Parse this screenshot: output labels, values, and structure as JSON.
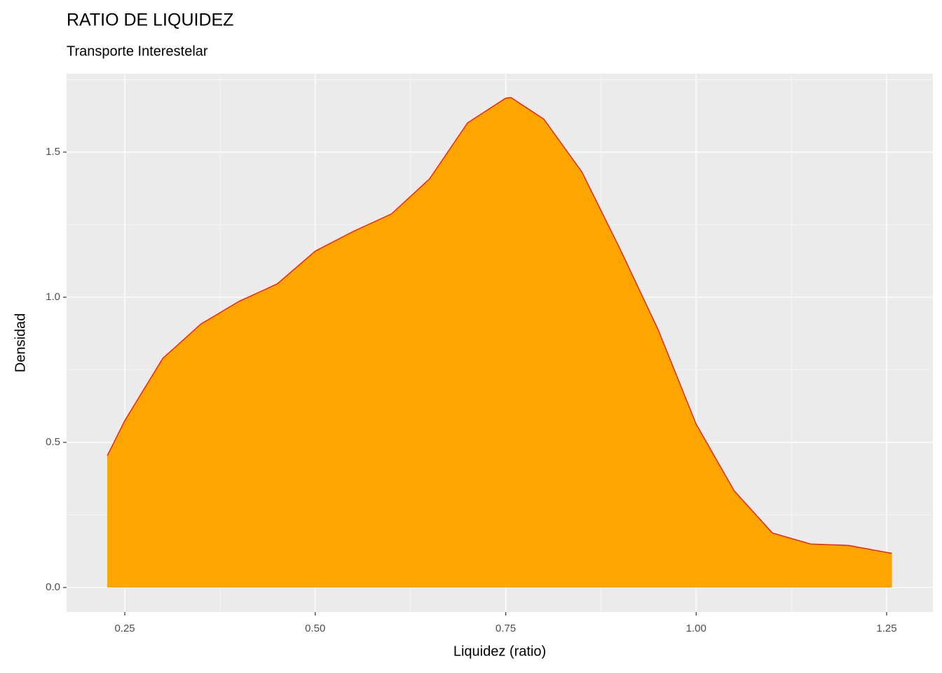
{
  "chart_data": {
    "type": "density",
    "title": "RATIO DE LIQUIDEZ",
    "subtitle": "Transporte Interestelar",
    "x_label": "Liquidez (ratio)",
    "y_label": "Densidad",
    "x": [
      0.227,
      0.25,
      0.3,
      0.35,
      0.4,
      0.45,
      0.5,
      0.55,
      0.6,
      0.65,
      0.7,
      0.75,
      0.757,
      0.8,
      0.85,
      0.9,
      0.95,
      1.0,
      1.05,
      1.1,
      1.15,
      1.2,
      1.25,
      1.257
    ],
    "values": [
      0.454,
      0.575,
      0.79,
      0.908,
      0.986,
      1.046,
      1.159,
      1.227,
      1.287,
      1.408,
      1.601,
      1.686,
      1.688,
      1.614,
      1.432,
      1.167,
      0.889,
      0.563,
      0.333,
      0.188,
      0.15,
      0.145,
      0.121,
      0.118
    ],
    "fill": "#ffa500",
    "color": "#ff0000",
    "xlim": [
      0.1736,
      1.3107
    ],
    "ylim": [
      -0.0845,
      1.7705
    ],
    "xticks": [
      {
        "value": 0.25,
        "label": "0.25"
      },
      {
        "value": 0.5,
        "label": "0.50"
      },
      {
        "value": 0.75,
        "label": "0.75"
      },
      {
        "value": 1.0,
        "label": "1.00"
      },
      {
        "value": 1.25,
        "label": "1.25"
      }
    ],
    "yticks": [
      {
        "value": 0,
        "label": "0.0"
      },
      0.5,
      {
        "value": 1,
        "label": "1.0"
      },
      1.5
    ],
    "grid": true
  }
}
